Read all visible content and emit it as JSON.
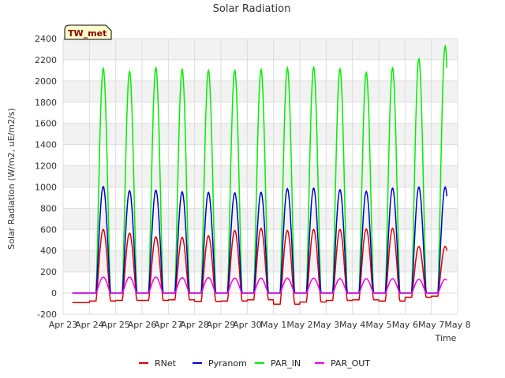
{
  "chart_data": {
    "type": "line",
    "title": "Solar Radiation",
    "xlabel": "Time",
    "ylabel": "Solar Radiation (W/m2, uE/m2/s)",
    "badge": "TW_met",
    "ylim": [
      -200,
      2400
    ],
    "yticks": [
      -200,
      0,
      200,
      400,
      600,
      800,
      1000,
      1200,
      1400,
      1600,
      1800,
      2000,
      2200,
      2400
    ],
    "xlim": [
      0,
      15
    ],
    "xtick_labels": [
      "Apr 23",
      "Apr 24",
      "Apr 25",
      "Apr 26",
      "Apr 27",
      "Apr 28",
      "Apr 29",
      "Apr 30",
      "May 1",
      "May 2",
      "May 3",
      "May 4",
      "May 5",
      "May 6",
      "May 7",
      "May 8"
    ],
    "grid": true,
    "legend_position": "bottom",
    "colors": {
      "RNet": "#dd0000",
      "Pyranom": "#0000cc",
      "PAR_IN": "#00ee00",
      "PAR_OUT": "#ee00ee"
    },
    "days": [
      "Apr 23",
      "Apr 24",
      "Apr 25",
      "Apr 26",
      "Apr 27",
      "Apr 28",
      "Apr 29",
      "Apr 30",
      "May 1",
      "May 2",
      "May 3",
      "May 4",
      "May 5",
      "May 6",
      "May 7"
    ],
    "series": [
      {
        "name": "RNet",
        "night": [
          -90,
          -75,
          -70,
          -70,
          -65,
          -80,
          -75,
          -65,
          -105,
          -85,
          -70,
          -65,
          -75,
          -40,
          -30
        ],
        "peak": [
          0,
          600,
          565,
          530,
          525,
          540,
          590,
          610,
          590,
          600,
          600,
          605,
          610,
          440,
          440
        ]
      },
      {
        "name": "Pyranom",
        "night": [
          0,
          0,
          0,
          0,
          0,
          0,
          0,
          0,
          0,
          0,
          0,
          0,
          0,
          0,
          0
        ],
        "peak": [
          0,
          1005,
          965,
          970,
          955,
          950,
          945,
          950,
          985,
          990,
          975,
          960,
          990,
          1000,
          1000
        ]
      },
      {
        "name": "PAR_IN",
        "night": [
          0,
          0,
          0,
          0,
          0,
          0,
          0,
          0,
          0,
          0,
          0,
          0,
          0,
          0,
          0
        ],
        "peak": [
          0,
          2120,
          2090,
          2125,
          2110,
          2100,
          2100,
          2110,
          2125,
          2130,
          2115,
          2080,
          2125,
          2210,
          2330
        ]
      },
      {
        "name": "PAR_OUT",
        "night": [
          0,
          0,
          0,
          0,
          0,
          0,
          0,
          0,
          0,
          0,
          0,
          0,
          0,
          0,
          0
        ],
        "peak": [
          0,
          150,
          150,
          150,
          145,
          145,
          140,
          140,
          140,
          140,
          135,
          135,
          135,
          130,
          130
        ]
      }
    ]
  }
}
